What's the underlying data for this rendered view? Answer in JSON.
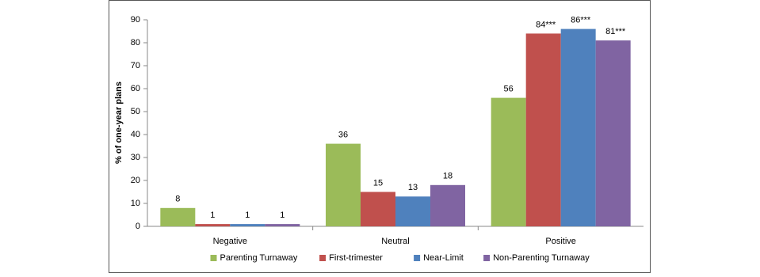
{
  "chart_data": {
    "type": "bar",
    "y_label": "% of one-year plans",
    "categories": [
      "Negative",
      "Neutral",
      "Positive"
    ],
    "series": [
      {
        "name": "Parenting Turnaway",
        "color": "#9bbb59",
        "values": [
          8,
          36,
          56
        ]
      },
      {
        "name": "First-trimester",
        "color": "#c0504d",
        "values": [
          1,
          15,
          84
        ],
        "value_labels": [
          "1",
          "15",
          "84***"
        ]
      },
      {
        "name": "Near-Limit",
        "color": "#4f81bd",
        "values": [
          1,
          13,
          86
        ],
        "value_labels": [
          "1",
          "13",
          "86***"
        ]
      },
      {
        "name": "Non-Parenting Turnaway",
        "color": "#8064a2",
        "values": [
          1,
          18,
          81
        ],
        "value_labels": [
          "1",
          "18",
          "81***"
        ]
      }
    ],
    "ylim": [
      0,
      90
    ],
    "yticks": [
      0,
      10,
      20,
      30,
      40,
      50,
      60,
      70,
      80,
      90
    ],
    "grid": false,
    "legend": "bottom"
  }
}
